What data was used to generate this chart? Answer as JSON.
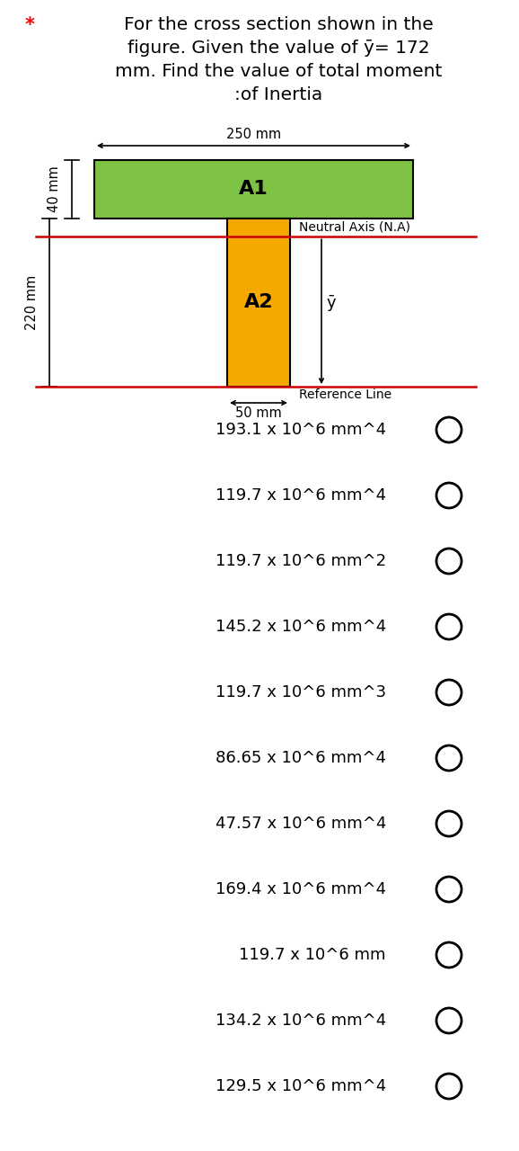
{
  "title_line1": "For the cross section shown in the",
  "title_line2": "figure. Given the value of ȳ= 172",
  "title_line3": "mm. Find the value of total moment",
  "title_line4": ":of Inertia",
  "star": "*",
  "bg_color": "#ffffff",
  "green_color": "#7dc244",
  "orange_color": "#f5a800",
  "red_color": "#cc0000",
  "dim_250": "250 mm",
  "dim_40": "40 mm",
  "dim_220": "220 mm",
  "dim_50": "50 mm",
  "label_A1": "A1",
  "label_A2": "A2",
  "label_NA": "Neutral Axis (N.A)",
  "label_Ybar": "ȳ",
  "label_ref": "Reference Line",
  "options": [
    "193.1 x 10^6 mm^4",
    "119.7 x 10^6 mm^4",
    "119.7 x 10^6 mm^2",
    "145.2 x 10^6 mm^4",
    "119.7 x 10^6 mm^3",
    "86.65 x 10^6 mm^4",
    "47.57 x 10^6 mm^4",
    "169.4 x 10^6 mm^4",
    "119.7 x 10^6 mm",
    "134.2 x 10^6 mm^4",
    "129.5 x 10^6 mm^4"
  ]
}
